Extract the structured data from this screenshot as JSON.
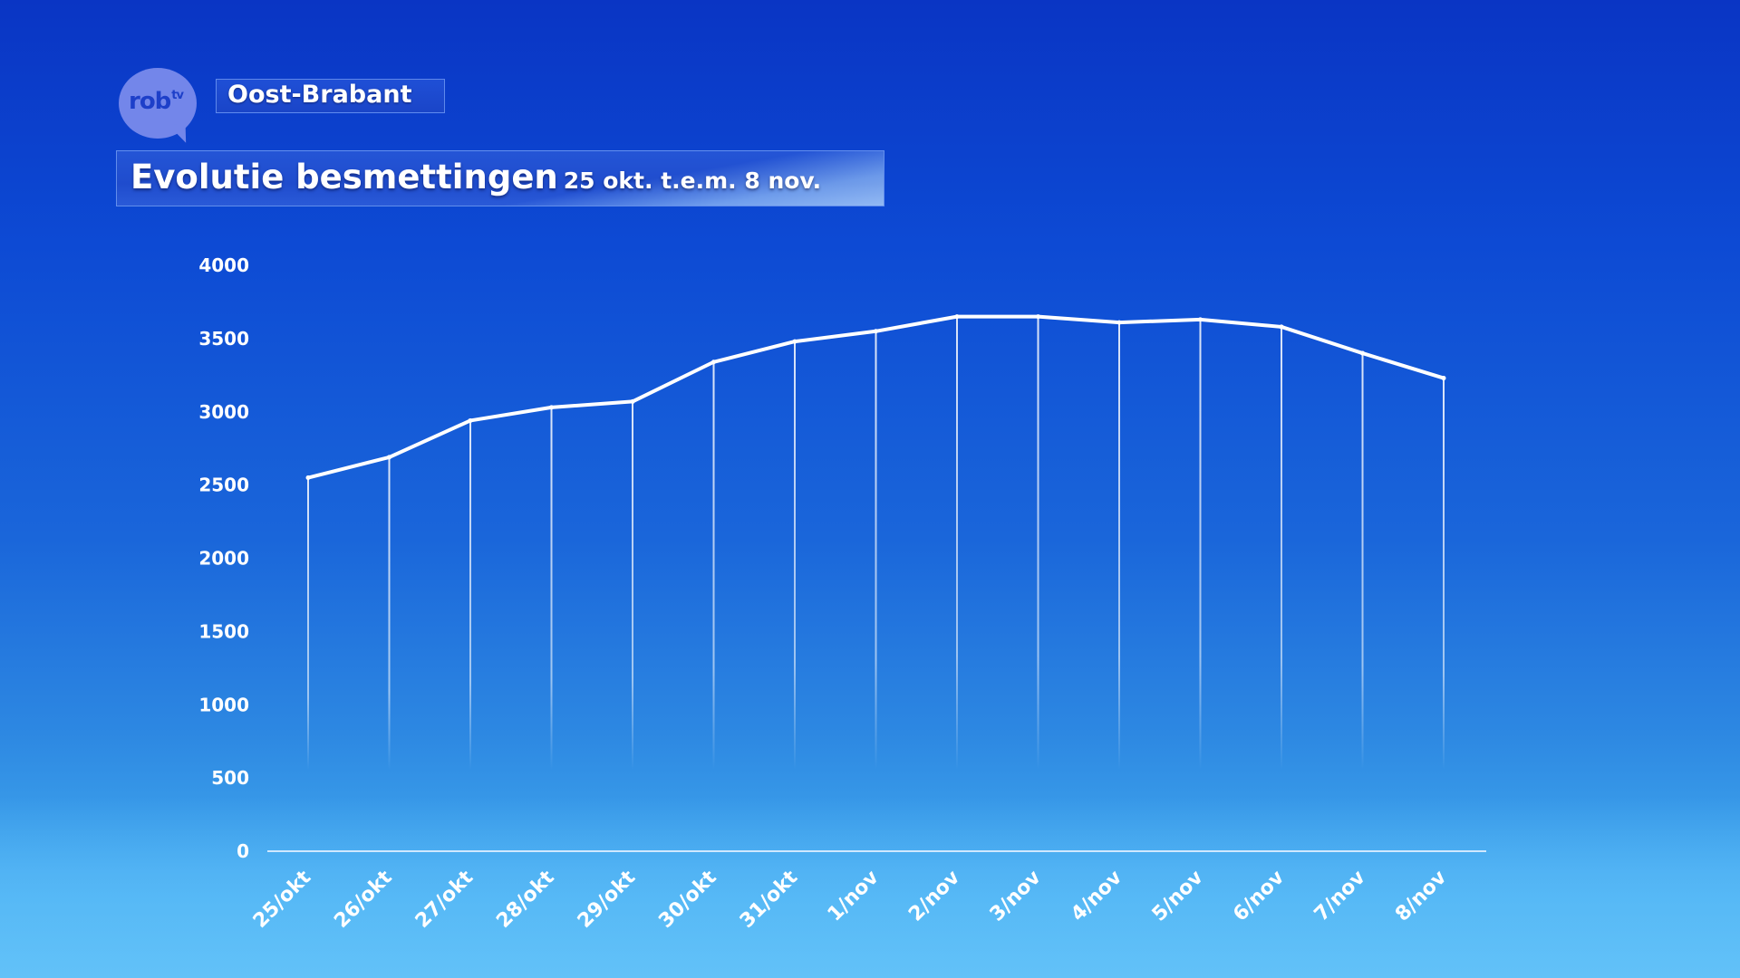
{
  "branding": {
    "logo_main": "rob",
    "logo_sup": "tv",
    "region": "Oost-Brabant"
  },
  "title": {
    "main": "Evolutie besmettingen",
    "sub": "25 okt. t.e.m. 8 nov."
  },
  "colors": {
    "background_top": "#0a35c4",
    "background_bottom": "#4cb6f2",
    "line": "#ffffff",
    "logo": "#7386ea"
  },
  "chart_data": {
    "type": "line",
    "title": "",
    "xlabel": "",
    "ylabel": "",
    "ylim": [
      0,
      4000
    ],
    "yticks": [
      0,
      500,
      1000,
      1500,
      2000,
      2500,
      3000,
      3500,
      4000
    ],
    "categories": [
      "25/okt",
      "26/okt",
      "27/okt",
      "28/okt",
      "29/okt",
      "30/okt",
      "31/okt",
      "1/nov",
      "2/nov",
      "3/nov",
      "4/nov",
      "5/nov",
      "6/nov",
      "7/nov",
      "8/nov"
    ],
    "values": [
      2550,
      2690,
      2940,
      3030,
      3070,
      3340,
      3480,
      3550,
      3650,
      3650,
      3610,
      3630,
      3580,
      3400,
      3230
    ],
    "grid": "vertical drop lines",
    "legend": "none"
  }
}
